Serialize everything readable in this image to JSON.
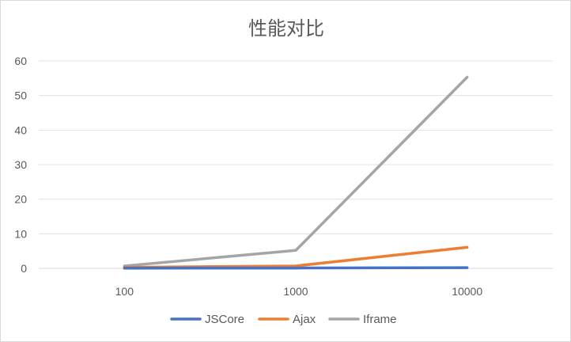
{
  "chart_data": {
    "type": "line",
    "title": "性能对比",
    "xlabel": "",
    "ylabel": "",
    "categories": [
      "100",
      "1000",
      "10000"
    ],
    "series": [
      {
        "name": "JSCore",
        "color": "#4472c4",
        "values": [
          0.05,
          0.1,
          0.2
        ]
      },
      {
        "name": "Ajax",
        "color": "#ed7d31",
        "values": [
          0.3,
          0.7,
          6.1
        ]
      },
      {
        "name": "Iframe",
        "color": "#a5a5a5",
        "values": [
          0.7,
          5.2,
          55.3
        ]
      }
    ],
    "ylim": [
      0,
      60
    ],
    "yticks": [
      0,
      10,
      20,
      30,
      40,
      50,
      60
    ],
    "grid": true,
    "legend": "bottom"
  }
}
